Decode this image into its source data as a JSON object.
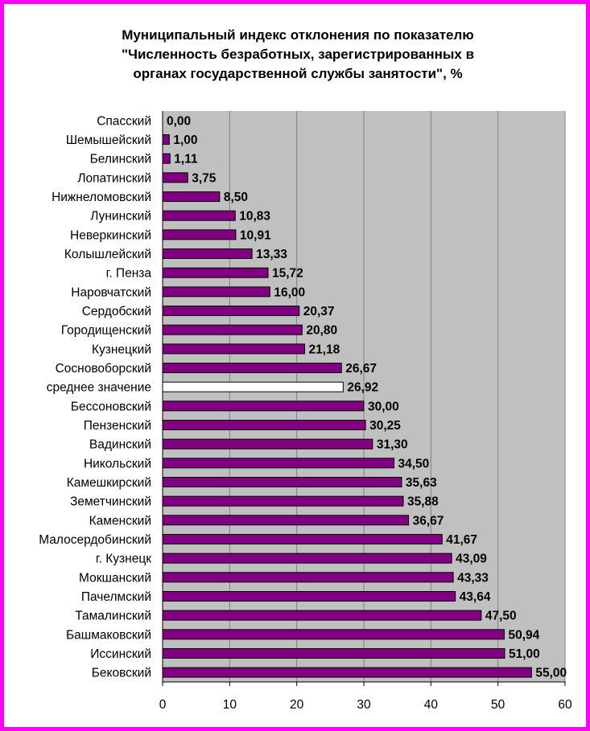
{
  "chart_data": {
    "type": "bar",
    "orientation": "horizontal",
    "title_lines": [
      "Муниципальный индекс отклонения по показателю",
      "\"Численность безработных, зарегистрированных в",
      "органах государственной службы занятости\", %"
    ],
    "categories": [
      "Спасский",
      "Шемышейский",
      "Белинский",
      "Лопатинский",
      "Нижнеломовский",
      "Лунинский",
      "Неверкинский",
      "Колышлейский",
      "г. Пенза",
      "Наровчатский",
      "Сердобский",
      "Городищенский",
      "Кузнецкий",
      "Сосновоборский",
      "среднее значение",
      "Бессоновский",
      "Пензенский",
      "Вадинский",
      "Никольский",
      "Камешкирский",
      "Земетчинский",
      "Каменский",
      "Малосердобинский",
      "г. Кузнецк",
      "Мокшанский",
      "Пачелмский",
      "Тамалинский",
      "Башмаковский",
      "Иссинский",
      "Бековский"
    ],
    "values": [
      0.0,
      1.0,
      1.11,
      3.75,
      8.5,
      10.83,
      10.91,
      13.33,
      15.72,
      16.0,
      20.37,
      20.8,
      21.18,
      26.67,
      26.92,
      30.0,
      30.25,
      31.3,
      34.5,
      35.63,
      35.88,
      36.67,
      41.67,
      43.09,
      43.33,
      43.64,
      47.5,
      50.94,
      51.0,
      55.0
    ],
    "value_labels": [
      "0,00",
      "1,00",
      "1,11",
      "3,75",
      "8,50",
      "10,83",
      "10,91",
      "13,33",
      "15,72",
      "16,00",
      "20,37",
      "20,80",
      "21,18",
      "26,67",
      "26,92",
      "30,00",
      "30,25",
      "31,30",
      "34,50",
      "35,63",
      "35,88",
      "36,67",
      "41,67",
      "43,09",
      "43,33",
      "43,64",
      "47,50",
      "50,94",
      "51,00",
      "55,00"
    ],
    "highlight_category": "среднее значение",
    "x_ticks": [
      0,
      10,
      20,
      30,
      40,
      50,
      60
    ],
    "xlim": [
      0,
      60
    ],
    "grid": true,
    "colors": {
      "bar": "#800080",
      "bar_highlight": "#ffffff",
      "plot_background": "#c0c0c0",
      "gridline": "#808080",
      "border": "#ff00ff"
    }
  }
}
